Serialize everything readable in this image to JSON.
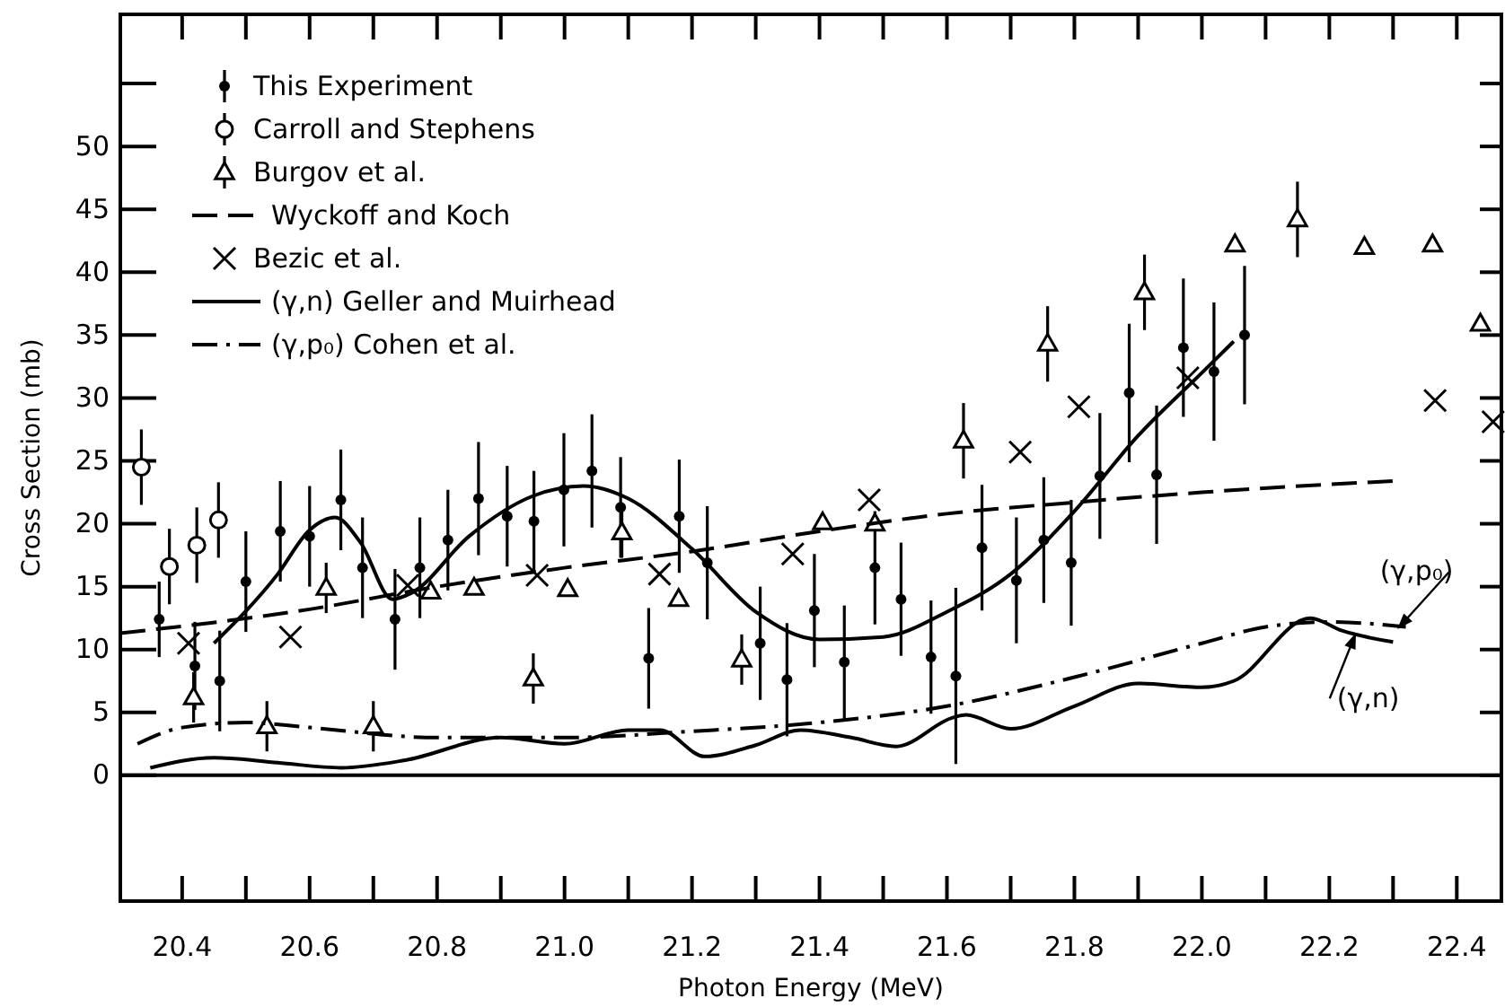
{
  "chart_data": {
    "type": "scatter",
    "xlabel": "Photon Energy (MeV)",
    "ylabel": "Cross Section (mb)",
    "xlim": [
      20.303,
      22.47
    ],
    "ylim": [
      -10,
      60.5
    ],
    "xticks": [
      20.4,
      {
        "value": 20.5,
        "label": null
      },
      20.6,
      {
        "value": 20.7,
        "label": null
      },
      20.8,
      {
        "value": 20.9,
        "label": null
      },
      {
        "value": 21.0,
        "label": "21.0"
      },
      {
        "value": 21.1,
        "label": null
      },
      21.2,
      {
        "value": 21.3,
        "label": null
      },
      21.4,
      {
        "value": 21.5,
        "label": null
      },
      21.6,
      {
        "value": 21.7,
        "label": null
      },
      21.8,
      {
        "value": 21.9,
        "label": null
      },
      {
        "value": 22.0,
        "label": "22.0"
      },
      {
        "value": 22.1,
        "label": null
      },
      22.2,
      {
        "value": 22.3,
        "label": null
      },
      22.4
    ],
    "yticks": [
      0,
      5,
      10,
      15,
      20,
      25,
      30,
      35,
      40,
      45,
      50,
      {
        "value": 55,
        "label": null
      }
    ],
    "grid": false,
    "legend": "top left",
    "ref_lines": [
      {
        "axis": "y",
        "value": 0,
        "label": null
      }
    ],
    "annotations": [
      {
        "text": "(γ,p₀)",
        "x": 22.31,
        "y": 11.8
      },
      {
        "text": "(γ,n)",
        "x": 22.24,
        "y": 11.1
      }
    ],
    "series": [
      {
        "name": "This Experiment",
        "marker": "circle",
        "color": "#000000",
        "x": [
          20.364,
          20.42,
          20.459,
          20.5,
          20.554,
          20.6,
          20.649,
          20.683,
          20.734,
          20.773,
          20.817,
          20.865,
          20.91,
          20.952,
          20.999,
          21.043,
          21.088,
          21.132,
          21.18,
          21.224,
          21.307,
          21.349,
          21.392,
          21.439,
          21.487,
          21.528,
          21.575,
          21.614,
          21.655,
          21.709,
          21.752,
          21.795,
          21.84,
          21.886,
          21.929,
          21.971,
          22.019,
          22.067
        ],
        "values": [
          12.4,
          8.7,
          7.5,
          15.4,
          19.4,
          19.0,
          21.9,
          16.5,
          12.4,
          16.5,
          18.7,
          22.0,
          20.6,
          20.2,
          22.7,
          24.2,
          21.3,
          9.3,
          20.6,
          16.9,
          10.5,
          7.6,
          13.1,
          9.0,
          16.5,
          14.0,
          9.4,
          7.9,
          18.1,
          15.5,
          18.7,
          16.9,
          23.8,
          30.4,
          23.9,
          34.0,
          32.1,
          35.0
        ],
        "errors": [
          3,
          3.5,
          4,
          4,
          4,
          4,
          4,
          4,
          4,
          4,
          4,
          4.5,
          4,
          4,
          4.5,
          4.5,
          4,
          4,
          4.5,
          4.5,
          4.5,
          4.5,
          4.5,
          4.5,
          4.5,
          4.5,
          4.5,
          7,
          5,
          5,
          5,
          5,
          5,
          5.5,
          5.5,
          5.5,
          5.5,
          5.5
        ]
      },
      {
        "name": "Carroll and Stephens",
        "marker": "open-circle",
        "color": "#000000",
        "x": [
          20.336,
          20.38,
          20.423,
          20.457
        ],
        "values": [
          24.5,
          16.6,
          18.3,
          20.3
        ],
        "errors": [
          3,
          3,
          3,
          3
        ]
      },
      {
        "name": "Burgov et al.",
        "marker": "triangle",
        "color": "#000000",
        "x": [
          20.418,
          20.533,
          20.626,
          20.7,
          20.79,
          20.858,
          20.951,
          21.005,
          21.09,
          21.179,
          21.278,
          21.405,
          21.487,
          21.626,
          21.758,
          21.91,
          22.052,
          22.15,
          22.255,
          22.362,
          22.437
        ],
        "values": [
          6.2,
          3.9,
          14.9,
          3.9,
          14.6,
          14.9,
          7.7,
          14.8,
          19.3,
          14.0,
          9.2,
          20.1,
          20.0,
          26.6,
          34.3,
          38.4,
          42.2,
          44.2,
          42.0,
          42.2,
          35.9
        ],
        "errors": [
          2,
          2,
          2,
          2,
          null,
          null,
          2,
          null,
          2,
          null,
          2,
          null,
          null,
          3,
          3,
          3,
          null,
          3,
          null,
          null,
          null
        ]
      },
      {
        "name": "Wyckoff and Koch",
        "type": "line",
        "line_style": "dashed",
        "color": "#000000",
        "x": [
          20.303,
          20.6,
          20.8,
          21.0,
          21.2,
          21.4,
          21.6,
          21.8,
          22.0,
          22.3
        ],
        "values": [
          11.3,
          13.2,
          15.0,
          16.5,
          17.8,
          19.4,
          20.8,
          21.7,
          22.5,
          23.4
        ]
      },
      {
        "name": "Bezic et al.",
        "marker": "cross",
        "color": "#000000",
        "x": [
          20.41,
          20.57,
          20.754,
          20.957,
          21.149,
          21.358,
          21.478,
          21.715,
          21.807,
          21.978,
          22.366,
          22.457
        ],
        "values": [
          10.5,
          11.0,
          15.1,
          15.9,
          16.0,
          17.6,
          21.9,
          25.7,
          29.3,
          31.6,
          29.8,
          28.1
        ]
      },
      {
        "name": "(γ,n) Geller and Muirhead",
        "type": "line",
        "line_style": "solid",
        "color": "#000000",
        "x": [
          20.35,
          20.45,
          20.55,
          20.65,
          20.75,
          20.9,
          21.0,
          21.1,
          21.15,
          21.22,
          21.3,
          21.37,
          21.45,
          21.52,
          21.61,
          21.63,
          21.7,
          21.8,
          21.9,
          22.0,
          22.05,
          22.17,
          22.22,
          22.3
        ],
        "values": [
          0.6,
          1.4,
          1.0,
          0.6,
          1.2,
          3.0,
          2.5,
          3.6,
          3.6,
          1.5,
          2.4,
          3.6,
          3.0,
          2.3,
          4.6,
          4.8,
          3.7,
          5.5,
          7.3,
          7.0,
          7.5,
          12.5,
          11.5,
          10.6
        ]
      },
      {
        "name": "(γ,p₀) Cohen et al.",
        "type": "line",
        "line_style": "dashdot",
        "color": "#000000",
        "x": [
          20.33,
          20.4,
          20.5,
          20.6,
          20.8,
          21.0,
          21.2,
          21.4,
          21.6,
          21.8,
          22.0,
          22.1,
          22.2,
          22.32
        ],
        "values": [
          2.5,
          3.8,
          4.2,
          3.8,
          3.0,
          3.0,
          3.5,
          4.2,
          5.5,
          7.8,
          10.5,
          11.8,
          12.2,
          11.8
        ]
      },
      {
        "type": "line",
        "line_style": "solid",
        "color": "#000000",
        "x": [
          20.45,
          20.55,
          20.6,
          20.64,
          20.68,
          20.73,
          20.76,
          20.85,
          20.95,
          21.03,
          21.1,
          21.2,
          21.3,
          21.4,
          21.5,
          21.6,
          21.7,
          21.8,
          21.9,
          22.0,
          22.05
        ],
        "values": [
          10.5,
          16,
          19.5,
          20.5,
          18.5,
          14,
          14.5,
          19,
          22.2,
          23,
          22,
          18,
          13,
          10.8,
          11,
          13,
          16,
          21,
          27,
          32,
          34.5
        ]
      }
    ]
  }
}
